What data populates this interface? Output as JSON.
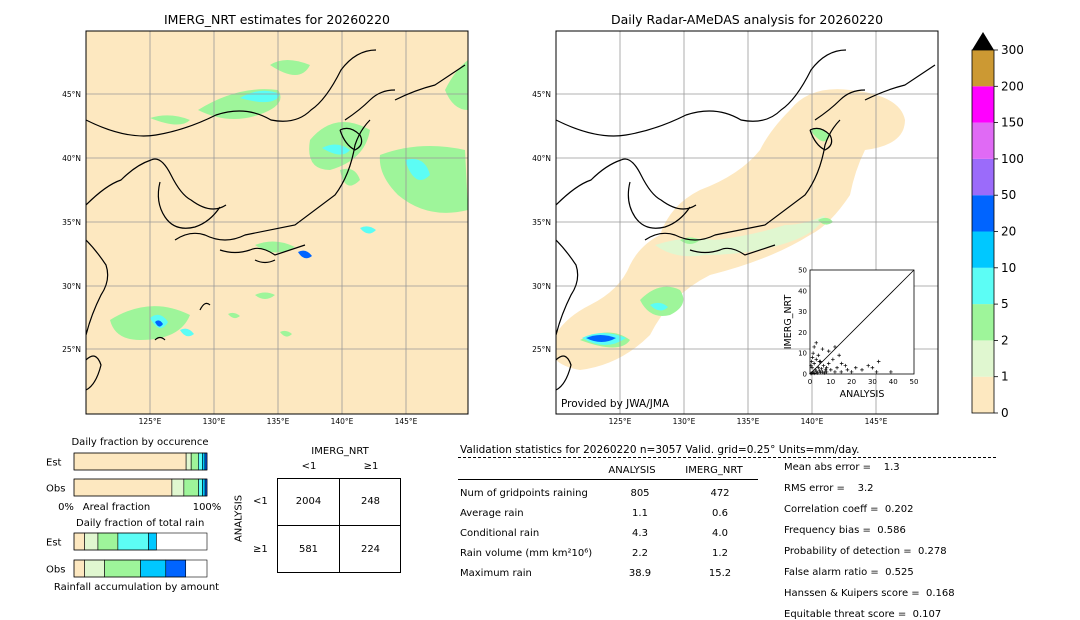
{
  "left_map": {
    "title": "IMERG_NRT estimates for 20260220",
    "lat_labels": [
      "45°N",
      "40°N",
      "35°N",
      "30°N",
      "25°N"
    ],
    "lon_labels": [
      "125°E",
      "130°E",
      "135°E",
      "140°E",
      "145°E"
    ]
  },
  "right_map": {
    "title": "Daily Radar-AMeDAS analysis for 20260220",
    "lat_labels": [
      "45°N",
      "40°N",
      "35°N",
      "30°N",
      "25°N"
    ],
    "lon_labels": [
      "125°E",
      "130°E",
      "135°E",
      "140°E",
      "145°E"
    ],
    "credit": "Provided by JWA/JMA"
  },
  "colorbar": {
    "labels": [
      "0",
      "1",
      "2",
      "5",
      "10",
      "20",
      "50",
      "100",
      "150",
      "200",
      "300"
    ],
    "colors": [
      "#fde8c0",
      "#e0f7d0",
      "#9ef59a",
      "#5cfdf5",
      "#00c8ff",
      "#0064ff",
      "#9b6bfa",
      "#e06af5",
      "#ff00ff",
      "#cc9933"
    ]
  },
  "chart_data": [
    {
      "type": "scatter",
      "title": "",
      "xlabel": "ANALYSIS",
      "ylabel": "IMERG_NRT",
      "xlim": [
        0,
        50
      ],
      "ylim": [
        0,
        50
      ],
      "ticks": [
        "0",
        "10",
        "20",
        "30",
        "40",
        "50"
      ],
      "diagonal": true,
      "points": [
        [
          0.5,
          0.2
        ],
        [
          1,
          0.5
        ],
        [
          1.5,
          1
        ],
        [
          2,
          0.3
        ],
        [
          2.5,
          2
        ],
        [
          3,
          1
        ],
        [
          3.5,
          0.5
        ],
        [
          4,
          3
        ],
        [
          4.5,
          1.5
        ],
        [
          5,
          0.8
        ],
        [
          5.5,
          2.5
        ],
        [
          6,
          1
        ],
        [
          6.5,
          4
        ],
        [
          7,
          0.5
        ],
        [
          7.5,
          2
        ],
        [
          8,
          1
        ],
        [
          1,
          3
        ],
        [
          2,
          5
        ],
        [
          3,
          7
        ],
        [
          1.5,
          10
        ],
        [
          4,
          9
        ],
        [
          2,
          13
        ],
        [
          5,
          6
        ],
        [
          6,
          12
        ],
        [
          3,
          15
        ],
        [
          8,
          3
        ],
        [
          9,
          5
        ],
        [
          10,
          2
        ],
        [
          11,
          7
        ],
        [
          12,
          1
        ],
        [
          13,
          3
        ],
        [
          14,
          9
        ],
        [
          15,
          1
        ],
        [
          17,
          4
        ],
        [
          18,
          2
        ],
        [
          20,
          1
        ],
        [
          22,
          3
        ],
        [
          25,
          2
        ],
        [
          28,
          4
        ],
        [
          30,
          3
        ],
        [
          32,
          1
        ],
        [
          33,
          6
        ],
        [
          38.9,
          1
        ],
        [
          15.2,
          5
        ],
        [
          9,
          11
        ],
        [
          12,
          13
        ],
        [
          0.5,
          4
        ],
        [
          0.8,
          6
        ],
        [
          1.2,
          8
        ],
        [
          4.5,
          6
        ]
      ]
    },
    {
      "type": "bar",
      "title": "Daily fraction by occurence",
      "categories": [
        "Est",
        "Obs"
      ],
      "xlabel_left": "0%",
      "xlabel_mid": "Areal fraction",
      "xlabel_right": "100%",
      "stacked": true,
      "series": [
        {
          "values": [
            0.843,
            0.736
          ],
          "color": "#fde8c0"
        },
        {
          "values": [
            0.038,
            0.09
          ],
          "color": "#e0f7d0"
        },
        {
          "values": [
            0.054,
            0.11
          ],
          "color": "#9ef59a"
        },
        {
          "values": [
            0.03,
            0.03
          ],
          "color": "#5cfdf5"
        },
        {
          "values": [
            0.02,
            0.02
          ],
          "color": "#00c8ff"
        },
        {
          "values": [
            0.015,
            0.014
          ],
          "color": "#0064ff"
        }
      ]
    },
    {
      "type": "bar",
      "title": "Daily fraction of total rain",
      "categories": [
        "Est",
        "Obs"
      ],
      "xlabel_mid": "Rainfall accumulation by amount",
      "stacked": true,
      "series": [
        {
          "values": [
            0.08,
            0.08
          ],
          "color": "#fde8c0"
        },
        {
          "values": [
            0.1,
            0.15
          ],
          "color": "#e0f7d0"
        },
        {
          "values": [
            0.15,
            0.27
          ],
          "color": "#9ef59a"
        },
        {
          "values": [
            0.23,
            0.0
          ],
          "color": "#5cfdf5"
        },
        {
          "values": [
            0.06,
            0.19
          ],
          "color": "#00c8ff"
        },
        {
          "values": [
            0.0,
            0.15
          ],
          "color": "#0064ff"
        }
      ]
    }
  ],
  "contingency": {
    "title": "IMERG_NRT",
    "col_labels": [
      "<1",
      "≥1"
    ],
    "row_axis": "ANALYSIS",
    "row_labels": [
      "<1",
      "≥1"
    ],
    "cells": [
      [
        "2004",
        "248"
      ],
      [
        "581",
        "224"
      ]
    ]
  },
  "stats": {
    "header": "Validation statistics for 20260220  n=3057 Valid. grid=0.25° Units=mm/day.",
    "col1": "ANALYSIS",
    "col2": "IMERG_NRT",
    "rows": [
      {
        "label": "Num of gridpoints raining",
        "a": "805",
        "b": "472"
      },
      {
        "label": "Average rain",
        "a": "1.1",
        "b": "0.6"
      },
      {
        "label": "Conditional rain",
        "a": "4.3",
        "b": "4.0"
      },
      {
        "label": "Rain volume (mm km²10⁶)",
        "a": "2.2",
        "b": "1.2"
      },
      {
        "label": "Maximum rain",
        "a": "38.9",
        "b": "15.2"
      }
    ],
    "scores": [
      "Mean abs error =    1.3",
      "RMS error =    3.2",
      "Correlation coeff =  0.202",
      "Frequency bias =  0.586",
      "Probability of detection =  0.278",
      "False alarm ratio =  0.525",
      "Hanssen & Kuipers score =  0.168",
      "Equitable threat score =  0.107"
    ]
  }
}
